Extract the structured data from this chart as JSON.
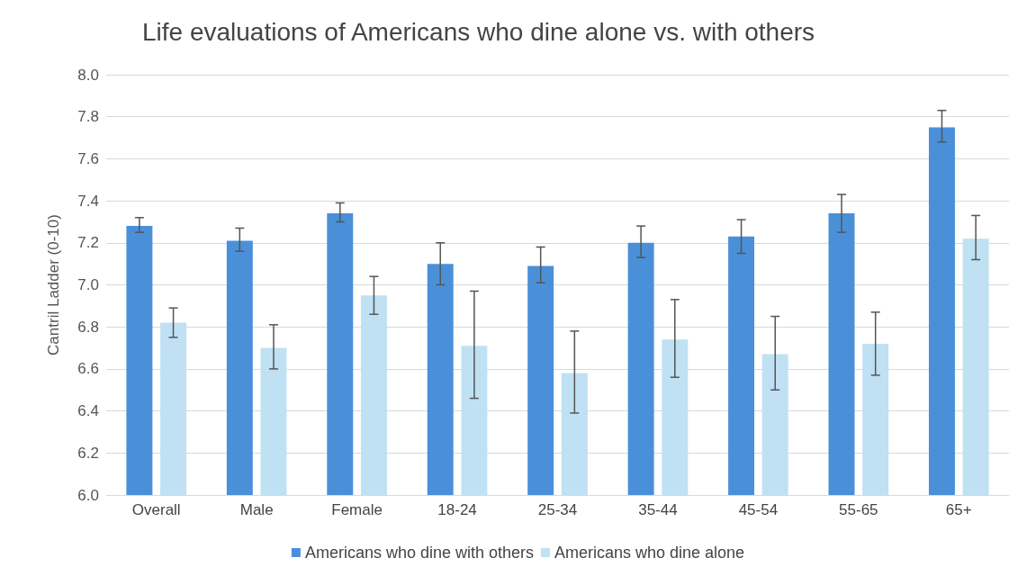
{
  "chart_data": {
    "type": "bar",
    "title": "Life evaluations of Americans who dine alone vs. with others",
    "ylabel": "Cantril Ladder (0-10)",
    "categories": [
      "Overall",
      "Male",
      "Female",
      "18-24",
      "25-34",
      "35-44",
      "45-54",
      "55-65",
      "65+"
    ],
    "series": [
      {
        "name": "Americans who dine with others",
        "color": "#4a90d9",
        "values": [
          7.28,
          7.21,
          7.34,
          7.1,
          7.09,
          7.2,
          7.23,
          7.34,
          7.75
        ],
        "errors": [
          [
            7.25,
            7.32
          ],
          [
            7.16,
            7.27
          ],
          [
            7.3,
            7.39
          ],
          [
            7.0,
            7.2
          ],
          [
            7.01,
            7.18
          ],
          [
            7.13,
            7.28
          ],
          [
            7.15,
            7.31
          ],
          [
            7.25,
            7.43
          ],
          [
            7.68,
            7.83
          ]
        ]
      },
      {
        "name": "Americans who dine alone",
        "color": "#bfe1f3",
        "values": [
          6.82,
          6.7,
          6.95,
          6.71,
          6.58,
          6.74,
          6.67,
          6.72,
          7.22
        ],
        "errors": [
          [
            6.75,
            6.89
          ],
          [
            6.6,
            6.81
          ],
          [
            6.86,
            7.04
          ],
          [
            6.46,
            6.97
          ],
          [
            6.39,
            6.78
          ],
          [
            6.56,
            6.93
          ],
          [
            6.5,
            6.85
          ],
          [
            6.57,
            6.87
          ],
          [
            7.12,
            7.33
          ]
        ]
      }
    ],
    "ylim": [
      6.0,
      8.0
    ],
    "yticks": [
      {
        "value": 6,
        "label": "6.0"
      },
      6.2,
      6.4,
      6.6,
      6.8,
      {
        "value": 7,
        "label": "7.0"
      },
      7.2,
      7.4,
      7.6,
      7.8,
      {
        "value": 8,
        "label": "8.0"
      }
    ],
    "grid": "y",
    "legend": "bottom"
  }
}
